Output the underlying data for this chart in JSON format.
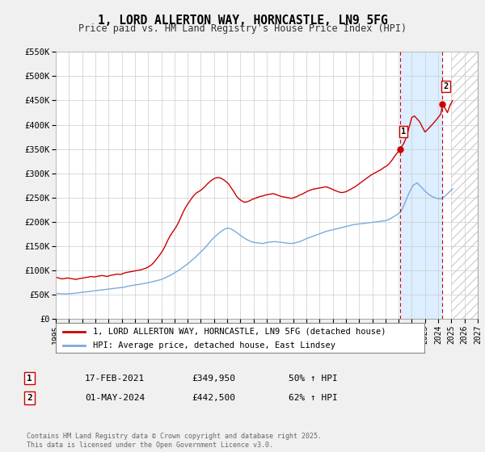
{
  "title": "1, LORD ALLERTON WAY, HORNCASTLE, LN9 5FG",
  "subtitle": "Price paid vs. HM Land Registry's House Price Index (HPI)",
  "title_fontsize": 10.5,
  "subtitle_fontsize": 8.5,
  "xlim": [
    1995,
    2027
  ],
  "ylim": [
    0,
    550000
  ],
  "yticks": [
    0,
    50000,
    100000,
    150000,
    200000,
    250000,
    300000,
    350000,
    400000,
    450000,
    500000,
    550000
  ],
  "ytick_labels": [
    "£0",
    "£50K",
    "£100K",
    "£150K",
    "£200K",
    "£250K",
    "£300K",
    "£350K",
    "£400K",
    "£450K",
    "£500K",
    "£550K"
  ],
  "xticks": [
    1995,
    1996,
    1997,
    1998,
    1999,
    2000,
    2001,
    2002,
    2003,
    2004,
    2005,
    2006,
    2007,
    2008,
    2009,
    2010,
    2011,
    2012,
    2013,
    2014,
    2015,
    2016,
    2017,
    2018,
    2019,
    2020,
    2021,
    2022,
    2023,
    2024,
    2025,
    2026,
    2027
  ],
  "bg_color": "#f0f0f0",
  "plot_bg_color": "#ffffff",
  "grid_color": "#cccccc",
  "shaded_region_color": "#dceeff",
  "hatch_region_color": "#e8e8e8",
  "vline_color": "#cc0000",
  "vline_x1": 2021.12,
  "vline_x2": 2024.33,
  "hatch_start": 2025.0,
  "marker1_x": 2021.12,
  "marker1_y": 349950,
  "marker2_x": 2024.33,
  "marker2_y": 442500,
  "red_line_color": "#cc0000",
  "blue_line_color": "#7aaadd",
  "legend_label_red": "1, LORD ALLERTON WAY, HORNCASTLE, LN9 5FG (detached house)",
  "legend_label_blue": "HPI: Average price, detached house, East Lindsey",
  "table_row1": [
    "1",
    "17-FEB-2021",
    "£349,950",
    "50% ↑ HPI"
  ],
  "table_row2": [
    "2",
    "01-MAY-2024",
    "£442,500",
    "62% ↑ HPI"
  ],
  "footer": "Contains HM Land Registry data © Crown copyright and database right 2025.\nThis data is licensed under the Open Government Licence v3.0.",
  "red_x": [
    1995.1,
    1995.3,
    1995.5,
    1995.7,
    1995.9,
    1996.1,
    1996.3,
    1996.5,
    1996.7,
    1996.9,
    1997.1,
    1997.3,
    1997.5,
    1997.7,
    1997.9,
    1998.1,
    1998.3,
    1998.5,
    1998.7,
    1998.9,
    1999.1,
    1999.3,
    1999.5,
    1999.7,
    1999.9,
    2000.1,
    2000.3,
    2000.5,
    2000.7,
    2000.9,
    2001.1,
    2001.3,
    2001.5,
    2001.7,
    2001.9,
    2002.1,
    2002.3,
    2002.5,
    2002.7,
    2002.9,
    2003.1,
    2003.3,
    2003.5,
    2003.7,
    2003.9,
    2004.1,
    2004.3,
    2004.5,
    2004.7,
    2004.9,
    2005.1,
    2005.3,
    2005.5,
    2005.7,
    2005.9,
    2006.1,
    2006.3,
    2006.5,
    2006.7,
    2006.9,
    2007.1,
    2007.3,
    2007.5,
    2007.7,
    2007.9,
    2008.1,
    2008.3,
    2008.5,
    2008.7,
    2008.9,
    2009.1,
    2009.3,
    2009.5,
    2009.7,
    2009.9,
    2010.1,
    2010.3,
    2010.5,
    2010.7,
    2010.9,
    2011.1,
    2011.3,
    2011.5,
    2011.7,
    2011.9,
    2012.1,
    2012.3,
    2012.5,
    2012.7,
    2012.9,
    2013.1,
    2013.3,
    2013.5,
    2013.7,
    2013.9,
    2014.1,
    2014.3,
    2014.5,
    2014.7,
    2014.9,
    2015.1,
    2015.3,
    2015.5,
    2015.7,
    2015.9,
    2016.1,
    2016.3,
    2016.5,
    2016.7,
    2016.9,
    2017.1,
    2017.3,
    2017.5,
    2017.7,
    2017.9,
    2018.1,
    2018.3,
    2018.5,
    2018.7,
    2018.9,
    2019.1,
    2019.3,
    2019.5,
    2019.7,
    2019.9,
    2020.1,
    2020.3,
    2020.5,
    2020.7,
    2020.9,
    2021.12,
    2021.4,
    2021.6,
    2021.8,
    2022.0,
    2022.2,
    2022.4,
    2022.6,
    2022.8,
    2023.0,
    2023.2,
    2023.4,
    2023.6,
    2023.8,
    2024.0,
    2024.2,
    2024.33,
    2024.5,
    2024.7,
    2024.9,
    2025.1
  ],
  "red_y": [
    85000,
    83000,
    82000,
    83000,
    84000,
    83000,
    82000,
    81000,
    82000,
    83000,
    84000,
    85000,
    86000,
    87000,
    86000,
    87000,
    88000,
    89000,
    88000,
    87000,
    89000,
    90000,
    91000,
    92000,
    91000,
    93000,
    95000,
    96000,
    97000,
    98000,
    99000,
    100000,
    101000,
    103000,
    105000,
    108000,
    112000,
    118000,
    125000,
    132000,
    140000,
    150000,
    162000,
    172000,
    180000,
    188000,
    198000,
    210000,
    222000,
    232000,
    240000,
    248000,
    255000,
    260000,
    263000,
    267000,
    272000,
    278000,
    283000,
    287000,
    290000,
    291000,
    290000,
    287000,
    283000,
    278000,
    270000,
    262000,
    253000,
    247000,
    243000,
    240000,
    241000,
    243000,
    246000,
    248000,
    250000,
    252000,
    253000,
    255000,
    256000,
    257000,
    258000,
    256000,
    254000,
    252000,
    251000,
    250000,
    249000,
    248000,
    250000,
    252000,
    255000,
    257000,
    260000,
    263000,
    265000,
    267000,
    268000,
    269000,
    270000,
    271000,
    272000,
    270000,
    268000,
    265000,
    263000,
    261000,
    260000,
    261000,
    263000,
    266000,
    269000,
    272000,
    276000,
    280000,
    284000,
    288000,
    292000,
    296000,
    299000,
    302000,
    305000,
    308000,
    312000,
    315000,
    320000,
    327000,
    335000,
    342000,
    349950,
    362000,
    375000,
    395000,
    415000,
    418000,
    412000,
    406000,
    395000,
    385000,
    390000,
    396000,
    402000,
    408000,
    415000,
    422000,
    442500,
    435000,
    425000,
    440000,
    450000
  ],
  "blue_x": [
    1995.1,
    1995.4,
    1995.7,
    1996.0,
    1996.3,
    1996.6,
    1996.9,
    1997.2,
    1997.5,
    1997.8,
    1998.1,
    1998.4,
    1998.7,
    1999.0,
    1999.3,
    1999.6,
    1999.9,
    2000.2,
    2000.5,
    2000.8,
    2001.1,
    2001.4,
    2001.7,
    2002.0,
    2002.3,
    2002.6,
    2002.9,
    2003.2,
    2003.5,
    2003.8,
    2004.1,
    2004.4,
    2004.7,
    2005.0,
    2005.3,
    2005.6,
    2005.9,
    2006.2,
    2006.5,
    2006.8,
    2007.1,
    2007.4,
    2007.7,
    2008.0,
    2008.3,
    2008.6,
    2008.9,
    2009.2,
    2009.5,
    2009.8,
    2010.1,
    2010.4,
    2010.7,
    2011.0,
    2011.3,
    2011.6,
    2011.9,
    2012.2,
    2012.5,
    2012.8,
    2013.1,
    2013.4,
    2013.7,
    2014.0,
    2014.3,
    2014.6,
    2014.9,
    2015.2,
    2015.5,
    2015.8,
    2016.1,
    2016.4,
    2016.7,
    2017.0,
    2017.3,
    2017.6,
    2017.9,
    2018.2,
    2018.5,
    2018.8,
    2019.1,
    2019.4,
    2019.7,
    2020.0,
    2020.3,
    2020.6,
    2020.9,
    2021.2,
    2021.5,
    2021.8,
    2022.1,
    2022.4,
    2022.7,
    2023.0,
    2023.3,
    2023.6,
    2023.9,
    2024.2,
    2024.5,
    2024.8,
    2025.1
  ],
  "blue_y": [
    52000,
    51500,
    51000,
    51500,
    52000,
    53000,
    54000,
    55000,
    56000,
    57000,
    58000,
    59000,
    60000,
    61000,
    62000,
    63000,
    64000,
    65000,
    67000,
    68500,
    70000,
    71000,
    72500,
    74000,
    76000,
    78000,
    80000,
    83000,
    87000,
    91000,
    96000,
    101000,
    107000,
    113000,
    120000,
    127000,
    135000,
    143000,
    152000,
    162000,
    170000,
    177000,
    183000,
    187000,
    185000,
    180000,
    174000,
    168000,
    163000,
    159000,
    157000,
    156000,
    155000,
    157000,
    158000,
    159000,
    158000,
    157000,
    156000,
    155000,
    156000,
    158000,
    161000,
    165000,
    168000,
    171000,
    174000,
    177000,
    180000,
    182000,
    184000,
    186000,
    188000,
    190000,
    192000,
    194000,
    195000,
    196000,
    197000,
    198000,
    199000,
    200000,
    201000,
    202000,
    205000,
    210000,
    215000,
    222000,
    240000,
    260000,
    275000,
    280000,
    272000,
    263000,
    256000,
    251000,
    248000,
    247000,
    252000,
    260000,
    268000
  ]
}
